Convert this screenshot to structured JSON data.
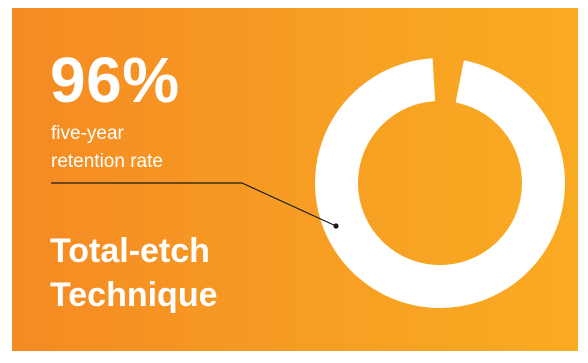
{
  "chart_data": {
    "type": "pie",
    "style": "donut",
    "values": [
      96,
      4
    ],
    "highlight_value": "96%",
    "label_lines": [
      "five-year",
      "retention rate"
    ],
    "title_lines": [
      "Total-etch",
      "Technique"
    ],
    "colors": {
      "filled": "#ffffff",
      "background_start": "#f58a23",
      "background_end": "#f9ab22",
      "leader_line": "#1a1a1a"
    }
  }
}
